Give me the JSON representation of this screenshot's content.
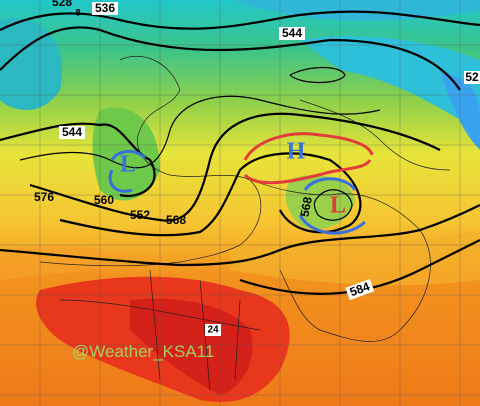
{
  "map": {
    "contour_labels": [
      "528",
      "8",
      "536",
      "544",
      "52",
      "544",
      "576",
      "560",
      "552",
      "568",
      "568",
      "584",
      "24"
    ],
    "pressure_centers": [
      "L",
      "H",
      "L"
    ],
    "watermark": "@Weather_KSA11"
  }
}
